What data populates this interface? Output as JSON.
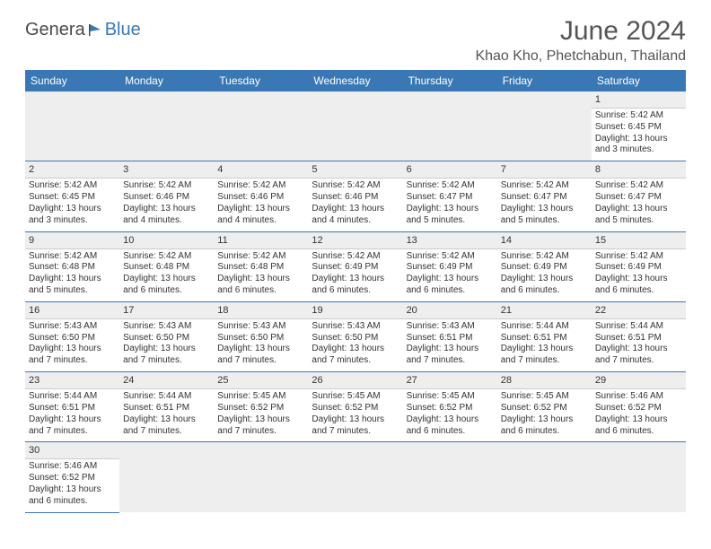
{
  "logo": {
    "main": "Genera",
    "accent": "Blue"
  },
  "title": "June 2024",
  "location": "Khao Kho, Phetchabun, Thailand",
  "header_bg": "#3a78b5",
  "header_fg": "#ffffff",
  "divider_color": "#3a78b5",
  "daynum_bg": "#eeeeee",
  "columns": [
    "Sunday",
    "Monday",
    "Tuesday",
    "Wednesday",
    "Thursday",
    "Friday",
    "Saturday"
  ],
  "weeks": [
    [
      null,
      null,
      null,
      null,
      null,
      null,
      {
        "n": "1",
        "sr": "Sunrise: 5:42 AM",
        "ss": "Sunset: 6:45 PM",
        "d1": "Daylight: 13 hours",
        "d2": "and 3 minutes."
      }
    ],
    [
      {
        "n": "2",
        "sr": "Sunrise: 5:42 AM",
        "ss": "Sunset: 6:45 PM",
        "d1": "Daylight: 13 hours",
        "d2": "and 3 minutes."
      },
      {
        "n": "3",
        "sr": "Sunrise: 5:42 AM",
        "ss": "Sunset: 6:46 PM",
        "d1": "Daylight: 13 hours",
        "d2": "and 4 minutes."
      },
      {
        "n": "4",
        "sr": "Sunrise: 5:42 AM",
        "ss": "Sunset: 6:46 PM",
        "d1": "Daylight: 13 hours",
        "d2": "and 4 minutes."
      },
      {
        "n": "5",
        "sr": "Sunrise: 5:42 AM",
        "ss": "Sunset: 6:46 PM",
        "d1": "Daylight: 13 hours",
        "d2": "and 4 minutes."
      },
      {
        "n": "6",
        "sr": "Sunrise: 5:42 AM",
        "ss": "Sunset: 6:47 PM",
        "d1": "Daylight: 13 hours",
        "d2": "and 5 minutes."
      },
      {
        "n": "7",
        "sr": "Sunrise: 5:42 AM",
        "ss": "Sunset: 6:47 PM",
        "d1": "Daylight: 13 hours",
        "d2": "and 5 minutes."
      },
      {
        "n": "8",
        "sr": "Sunrise: 5:42 AM",
        "ss": "Sunset: 6:47 PM",
        "d1": "Daylight: 13 hours",
        "d2": "and 5 minutes."
      }
    ],
    [
      {
        "n": "9",
        "sr": "Sunrise: 5:42 AM",
        "ss": "Sunset: 6:48 PM",
        "d1": "Daylight: 13 hours",
        "d2": "and 5 minutes."
      },
      {
        "n": "10",
        "sr": "Sunrise: 5:42 AM",
        "ss": "Sunset: 6:48 PM",
        "d1": "Daylight: 13 hours",
        "d2": "and 6 minutes."
      },
      {
        "n": "11",
        "sr": "Sunrise: 5:42 AM",
        "ss": "Sunset: 6:48 PM",
        "d1": "Daylight: 13 hours",
        "d2": "and 6 minutes."
      },
      {
        "n": "12",
        "sr": "Sunrise: 5:42 AM",
        "ss": "Sunset: 6:49 PM",
        "d1": "Daylight: 13 hours",
        "d2": "and 6 minutes."
      },
      {
        "n": "13",
        "sr": "Sunrise: 5:42 AM",
        "ss": "Sunset: 6:49 PM",
        "d1": "Daylight: 13 hours",
        "d2": "and 6 minutes."
      },
      {
        "n": "14",
        "sr": "Sunrise: 5:42 AM",
        "ss": "Sunset: 6:49 PM",
        "d1": "Daylight: 13 hours",
        "d2": "and 6 minutes."
      },
      {
        "n": "15",
        "sr": "Sunrise: 5:42 AM",
        "ss": "Sunset: 6:49 PM",
        "d1": "Daylight: 13 hours",
        "d2": "and 6 minutes."
      }
    ],
    [
      {
        "n": "16",
        "sr": "Sunrise: 5:43 AM",
        "ss": "Sunset: 6:50 PM",
        "d1": "Daylight: 13 hours",
        "d2": "and 7 minutes."
      },
      {
        "n": "17",
        "sr": "Sunrise: 5:43 AM",
        "ss": "Sunset: 6:50 PM",
        "d1": "Daylight: 13 hours",
        "d2": "and 7 minutes."
      },
      {
        "n": "18",
        "sr": "Sunrise: 5:43 AM",
        "ss": "Sunset: 6:50 PM",
        "d1": "Daylight: 13 hours",
        "d2": "and 7 minutes."
      },
      {
        "n": "19",
        "sr": "Sunrise: 5:43 AM",
        "ss": "Sunset: 6:50 PM",
        "d1": "Daylight: 13 hours",
        "d2": "and 7 minutes."
      },
      {
        "n": "20",
        "sr": "Sunrise: 5:43 AM",
        "ss": "Sunset: 6:51 PM",
        "d1": "Daylight: 13 hours",
        "d2": "and 7 minutes."
      },
      {
        "n": "21",
        "sr": "Sunrise: 5:44 AM",
        "ss": "Sunset: 6:51 PM",
        "d1": "Daylight: 13 hours",
        "d2": "and 7 minutes."
      },
      {
        "n": "22",
        "sr": "Sunrise: 5:44 AM",
        "ss": "Sunset: 6:51 PM",
        "d1": "Daylight: 13 hours",
        "d2": "and 7 minutes."
      }
    ],
    [
      {
        "n": "23",
        "sr": "Sunrise: 5:44 AM",
        "ss": "Sunset: 6:51 PM",
        "d1": "Daylight: 13 hours",
        "d2": "and 7 minutes."
      },
      {
        "n": "24",
        "sr": "Sunrise: 5:44 AM",
        "ss": "Sunset: 6:51 PM",
        "d1": "Daylight: 13 hours",
        "d2": "and 7 minutes."
      },
      {
        "n": "25",
        "sr": "Sunrise: 5:45 AM",
        "ss": "Sunset: 6:52 PM",
        "d1": "Daylight: 13 hours",
        "d2": "and 7 minutes."
      },
      {
        "n": "26",
        "sr": "Sunrise: 5:45 AM",
        "ss": "Sunset: 6:52 PM",
        "d1": "Daylight: 13 hours",
        "d2": "and 7 minutes."
      },
      {
        "n": "27",
        "sr": "Sunrise: 5:45 AM",
        "ss": "Sunset: 6:52 PM",
        "d1": "Daylight: 13 hours",
        "d2": "and 6 minutes."
      },
      {
        "n": "28",
        "sr": "Sunrise: 5:45 AM",
        "ss": "Sunset: 6:52 PM",
        "d1": "Daylight: 13 hours",
        "d2": "and 6 minutes."
      },
      {
        "n": "29",
        "sr": "Sunrise: 5:46 AM",
        "ss": "Sunset: 6:52 PM",
        "d1": "Daylight: 13 hours",
        "d2": "and 6 minutes."
      }
    ],
    [
      {
        "n": "30",
        "sr": "Sunrise: 5:46 AM",
        "ss": "Sunset: 6:52 PM",
        "d1": "Daylight: 13 hours",
        "d2": "and 6 minutes."
      },
      null,
      null,
      null,
      null,
      null,
      null
    ]
  ]
}
